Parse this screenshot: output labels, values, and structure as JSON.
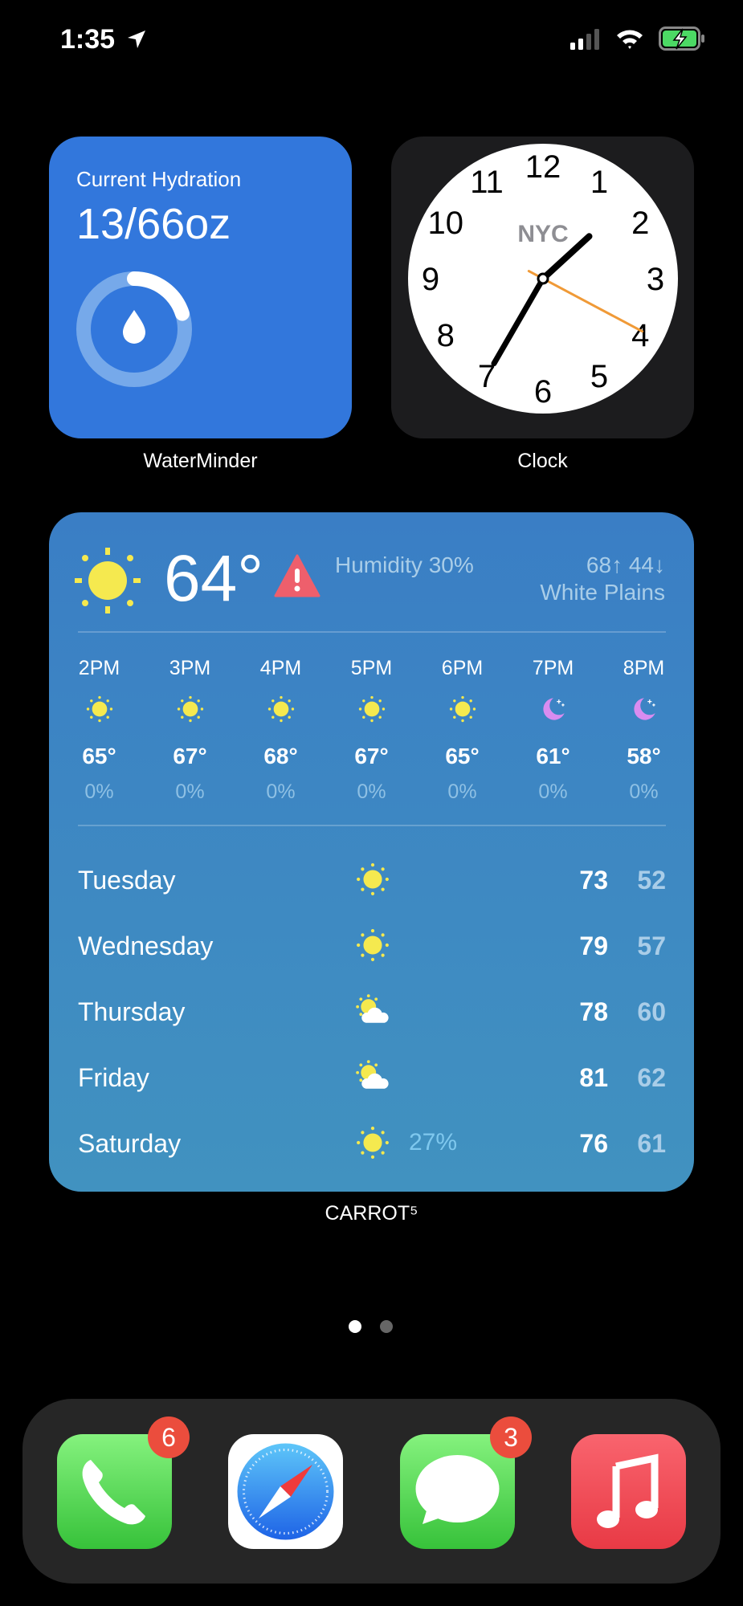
{
  "status_bar": {
    "time": "1:35",
    "location_icon": "location-arrow-icon",
    "signal_bars": 2,
    "wifi": "wifi-icon",
    "battery": "charging",
    "battery_color": "#4cd964"
  },
  "waterminder": {
    "title": "Current Hydration",
    "value": "13/66oz",
    "progress": 0.2,
    "app_label": "WaterMinder",
    "accent": "#3277dc"
  },
  "clock": {
    "city": "NYC",
    "app_label": "Clock",
    "numbers": [
      "12",
      "1",
      "2",
      "3",
      "4",
      "5",
      "6",
      "7",
      "8",
      "9",
      "10",
      "11"
    ],
    "time": "1:35",
    "second_hand_color": "#f09a37"
  },
  "weather": {
    "current_temp": "64°",
    "alert_icon": "warning-icon",
    "humidity": "Humidity 30%",
    "hi_lo": "68↑ 44↓",
    "location": "White Plains",
    "hourly": [
      {
        "time": "2PM",
        "icon": "sun",
        "temp": "65°",
        "precip": "0%"
      },
      {
        "time": "3PM",
        "icon": "sun",
        "temp": "67°",
        "precip": "0%"
      },
      {
        "time": "4PM",
        "icon": "sun",
        "temp": "68°",
        "precip": "0%"
      },
      {
        "time": "5PM",
        "icon": "sun",
        "temp": "67°",
        "precip": "0%"
      },
      {
        "time": "6PM",
        "icon": "sun",
        "temp": "65°",
        "precip": "0%"
      },
      {
        "time": "7PM",
        "icon": "moon",
        "temp": "61°",
        "precip": "0%"
      },
      {
        "time": "8PM",
        "icon": "moon",
        "temp": "58°",
        "precip": "0%"
      }
    ],
    "daily": [
      {
        "day": "Tuesday",
        "icon": "sun",
        "precip": "",
        "hi": "73",
        "lo": "52"
      },
      {
        "day": "Wednesday",
        "icon": "sun",
        "precip": "",
        "hi": "79",
        "lo": "57"
      },
      {
        "day": "Thursday",
        "icon": "partly-cloudy",
        "precip": "",
        "hi": "78",
        "lo": "60"
      },
      {
        "day": "Friday",
        "icon": "partly-cloudy",
        "precip": "",
        "hi": "81",
        "lo": "62"
      },
      {
        "day": "Saturday",
        "icon": "sun",
        "precip": "27%",
        "hi": "76",
        "lo": "61"
      }
    ],
    "app_label": "CARROT⁵"
  },
  "page_dots": {
    "count": 2,
    "active": 0
  },
  "dock": [
    {
      "name": "Phone",
      "badge": "6"
    },
    {
      "name": "Safari",
      "badge": ""
    },
    {
      "name": "Messages",
      "badge": "3"
    },
    {
      "name": "Music",
      "badge": ""
    }
  ]
}
